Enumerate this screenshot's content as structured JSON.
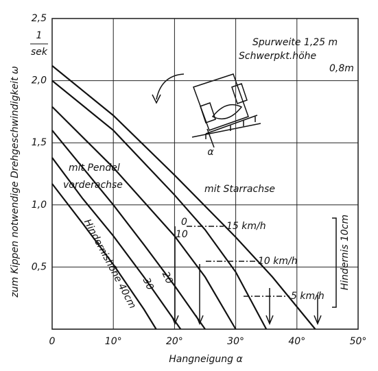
{
  "chart_data": {
    "type": "line",
    "xlabel": "Hangneigung α",
    "ylabel": "zum Kippen notwendige Drehgeschwindigkeit ω",
    "yunit_numerator": "1",
    "yunit_denominator": "sek",
    "xlim": [
      0,
      50
    ],
    "ylim": [
      0,
      2.5
    ],
    "xticks": [
      0,
      {
        "value": 10,
        "label": "10°"
      },
      {
        "value": 20,
        "label": "20°"
      },
      {
        "value": 30,
        "label": "30°"
      },
      {
        "value": 40,
        "label": "40°"
      },
      {
        "value": 50,
        "label": "50°"
      }
    ],
    "yticks": [
      {
        "value": 0.5,
        "label": "0,5"
      },
      {
        "value": 1.0,
        "label": "1,0"
      },
      {
        "value": 1.5,
        "label": "1,5"
      },
      {
        "value": 2.0,
        "label": "2,0"
      },
      {
        "value": 2.5,
        "label": "2,5"
      }
    ],
    "grid": true,
    "color": "#111111",
    "series": [
      {
        "x": [
          0,
          10,
          20,
          30,
          36,
          43
        ],
        "values": [
          2.12,
          1.72,
          1.24,
          0.74,
          0.42,
          0
        ]
      },
      {
        "x": [
          0,
          10,
          20,
          25,
          30,
          35
        ],
        "values": [
          2.0,
          1.6,
          1.08,
          0.8,
          0.46,
          0
        ]
      },
      {
        "x": [
          0,
          10,
          20,
          25,
          30
        ],
        "values": [
          1.79,
          1.3,
          0.75,
          0.42,
          0
        ]
      },
      {
        "x": [
          0,
          5,
          10,
          15,
          20,
          25
        ],
        "values": [
          1.6,
          1.3,
          1.0,
          0.68,
          0.35,
          0
        ]
      },
      {
        "x": [
          0,
          5,
          10,
          15,
          21
        ],
        "values": [
          1.38,
          1.05,
          0.75,
          0.42,
          0
        ]
      },
      {
        "x": [
          0,
          5,
          10,
          15,
          17
        ],
        "values": [
          1.17,
          0.85,
          0.52,
          0.16,
          0
        ]
      }
    ],
    "annotations": [
      "Spurweite 1,25 m",
      "Schwerpkt.höhe",
      "0,8m",
      "mit Pendel",
      "vorderachse",
      "mit Starrachse",
      "0",
      "10",
      "20",
      "30",
      "15 km/h",
      "10 km/h",
      "5 km/h",
      "Hindernis 10cm",
      "Hindernishöhe 40cm",
      "α"
    ]
  }
}
